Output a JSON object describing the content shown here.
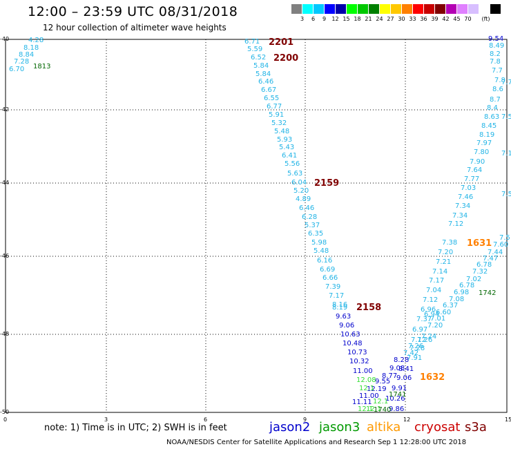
{
  "header": {
    "title": "12:00  –  23:59 UTC 08/31/2018",
    "subtitle": "12 hour collection of altimeter wave heights"
  },
  "colorbar": {
    "colors": [
      "#808080",
      "#00ffff",
      "#00c8ff",
      "#0000ff",
      "#0000aa",
      "#00ff00",
      "#00c800",
      "#008000",
      "#ffff00",
      "#ffc800",
      "#ff8000",
      "#ff0000",
      "#c80000",
      "#800000",
      "#b400b4",
      "#e080ff",
      "#d8bfff",
      "#ffffff",
      "#000000"
    ],
    "labels": [
      "3",
      "6",
      "9",
      "12",
      "15",
      "18",
      "21",
      "24",
      "27",
      "30",
      "33",
      "36",
      "39",
      "42",
      "45",
      "70",
      "(ft)"
    ]
  },
  "axes": {
    "y_ticks": [
      "-40",
      "-42",
      "-44",
      "-46",
      "-48",
      "-50"
    ],
    "x_ticks": [
      "0",
      "3",
      "6",
      "9",
      "12",
      "15"
    ]
  },
  "map_labels": {
    "wave_colors": {
      "c": "#22b4e6",
      "b": "#0000cc",
      "g": "#33dd33",
      "d": "#006600",
      "n": "#22b4e6"
    },
    "points": [
      [
        "4.28",
        41,
        59,
        "c"
      ],
      [
        "8.18",
        34,
        70,
        "c"
      ],
      [
        "8.84",
        27,
        80,
        "c"
      ],
      [
        "7.28",
        20,
        90,
        "c"
      ],
      [
        "6.70",
        13,
        101,
        "c"
      ],
      [
        "6.71",
        354,
        61,
        "c"
      ],
      [
        "5.59",
        358,
        72,
        "c"
      ],
      [
        "6.52",
        363,
        84,
        "c"
      ],
      [
        "5.84",
        367,
        96,
        "c"
      ],
      [
        "5.84",
        370,
        108,
        "c"
      ],
      [
        "6.46",
        374,
        119,
        "c"
      ],
      [
        "6.67",
        378,
        131,
        "c"
      ],
      [
        "6.55",
        382,
        143,
        "c"
      ],
      [
        "6.77",
        386,
        155,
        "c"
      ],
      [
        "5.91",
        389,
        167,
        "c"
      ],
      [
        "5.32",
        393,
        179,
        "c"
      ],
      [
        "5.48",
        397,
        191,
        "c"
      ],
      [
        "5.93",
        401,
        203,
        "c"
      ],
      [
        "5.43",
        404,
        214,
        "c"
      ],
      [
        "6.41",
        408,
        226,
        "c"
      ],
      [
        "5.56",
        412,
        238,
        "c"
      ],
      [
        "5.63",
        416,
        252,
        "c"
      ],
      [
        "6.04",
        422,
        265,
        "c"
      ],
      [
        "5.20",
        425,
        277,
        "c"
      ],
      [
        "4.89",
        428,
        289,
        "c"
      ],
      [
        "6.46",
        433,
        302,
        "c"
      ],
      [
        "6.28",
        437,
        315,
        "c"
      ],
      [
        "5.37",
        441,
        327,
        "c"
      ],
      [
        "6.35",
        446,
        339,
        "c"
      ],
      [
        "5.98",
        451,
        352,
        "c"
      ],
      [
        "5.48",
        454,
        364,
        "c"
      ],
      [
        "6.16",
        459,
        378,
        "c"
      ],
      [
        "6.69",
        463,
        391,
        "c"
      ],
      [
        "6.66",
        467,
        403,
        "c"
      ],
      [
        "7.39",
        471,
        416,
        "c"
      ],
      [
        "7.17",
        476,
        429,
        "c"
      ],
      [
        "8.16",
        481,
        442,
        "c"
      ],
      [
        "8.19",
        481,
        446,
        "c"
      ],
      [
        "9.63",
        486,
        459,
        "b"
      ],
      [
        "9.06",
        491,
        472,
        "b"
      ],
      [
        "10.63",
        493,
        485,
        "b"
      ],
      [
        "10.48",
        496,
        498,
        "b"
      ],
      [
        "10.73",
        503,
        511,
        "b"
      ],
      [
        "10.32",
        506,
        524,
        "b"
      ],
      [
        "11.00",
        511,
        538,
        "b"
      ],
      [
        "9.55",
        543,
        553,
        "b"
      ],
      [
        "12.19",
        531,
        564,
        "b"
      ],
      [
        "11.00",
        520,
        574,
        "b"
      ],
      [
        "11.11",
        510,
        583,
        "b"
      ],
      [
        "9.91",
        567,
        563,
        "b"
      ],
      [
        "10.26",
        558,
        578,
        "b"
      ],
      [
        "9.06",
        574,
        548,
        "b"
      ],
      [
        "9.08",
        564,
        534,
        "b"
      ],
      [
        "8.77",
        553,
        545,
        "b"
      ],
      [
        "8.28",
        570,
        522,
        "b"
      ],
      [
        "8.41",
        577,
        535,
        "b"
      ],
      [
        "9.86",
        563,
        593,
        "b"
      ],
      [
        "12.08",
        516,
        551,
        "g"
      ],
      [
        "12.1",
        520,
        563,
        "g"
      ],
      [
        "12.1",
        518,
        593,
        "g"
      ],
      [
        "12.1",
        530,
        593,
        "g"
      ],
      [
        "12.1",
        540,
        582,
        "g"
      ],
      [
        "1741",
        563,
        572,
        "d"
      ],
      [
        "1740",
        541,
        594,
        "d"
      ],
      [
        "1813",
        48,
        97,
        "d"
      ],
      [
        "1742",
        693,
        425,
        "d"
      ],
      [
        "7.91",
        589,
        519,
        "n"
      ],
      [
        "7.26",
        591,
        502,
        "n"
      ],
      [
        "7.28",
        593,
        505,
        "n"
      ],
      [
        "7.42",
        584,
        512,
        "n"
      ],
      [
        "7.12",
        595,
        493,
        "n"
      ],
      [
        "7.26",
        604,
        493,
        "n"
      ],
      [
        "6.97",
        597,
        478,
        "n"
      ],
      [
        "7.24",
        610,
        488,
        "n"
      ],
      [
        "7.37",
        603,
        463,
        "n"
      ],
      [
        "7.20",
        619,
        472,
        "n"
      ],
      [
        "7.01",
        623,
        462,
        "n"
      ],
      [
        "6.96",
        609,
        449,
        "n"
      ],
      [
        "6.94",
        614,
        456,
        "n"
      ],
      [
        "6.60",
        631,
        453,
        "n"
      ],
      [
        "6.37",
        641,
        443,
        "n"
      ],
      [
        "7.12",
        612,
        435,
        "n"
      ],
      [
        "7.08",
        650,
        434,
        "n"
      ],
      [
        "7.04",
        617,
        421,
        "n"
      ],
      [
        "6.98",
        657,
        424,
        "n"
      ],
      [
        "7.02",
        675,
        405,
        "n"
      ],
      [
        "7.17",
        621,
        407,
        "n"
      ],
      [
        "6.78",
        665,
        414,
        "n"
      ],
      [
        "7.14",
        626,
        394,
        "n"
      ],
      [
        "7.32",
        684,
        394,
        "n"
      ],
      [
        "6.78",
        690,
        384,
        "n"
      ],
      [
        "7.21",
        631,
        380,
        "n"
      ],
      [
        "7.47",
        699,
        375,
        "n"
      ],
      [
        "7.44",
        706,
        366,
        "n"
      ],
      [
        "7.20",
        634,
        366,
        "n"
      ],
      [
        "7.60",
        714,
        355,
        "n"
      ],
      [
        "7.38",
        640,
        352,
        "n"
      ],
      [
        "7.5",
        723,
        345,
        "n"
      ],
      [
        "7.12",
        649,
        325,
        "n"
      ],
      [
        "7.34",
        655,
        313,
        "n"
      ],
      [
        "7.34",
        659,
        299,
        "n"
      ],
      [
        "7.46",
        663,
        286,
        "n"
      ],
      [
        "7.03",
        667,
        273,
        "n"
      ],
      [
        "7.77",
        672,
        260,
        "n"
      ],
      [
        "7.64",
        676,
        247,
        "n"
      ],
      [
        "7.90",
        680,
        235,
        "n"
      ],
      [
        "7.80",
        686,
        221,
        "n"
      ],
      [
        "7.97",
        690,
        208,
        "n"
      ],
      [
        "8.19",
        694,
        196,
        "n"
      ],
      [
        "8.45",
        697,
        183,
        "n"
      ],
      [
        "8.63",
        701,
        170,
        "n"
      ],
      [
        "8.4",
        705,
        157,
        "n"
      ],
      [
        "8.7",
        709,
        145,
        "n"
      ],
      [
        "8.6",
        713,
        130,
        "n"
      ],
      [
        "7.8",
        716,
        117,
        "n"
      ],
      [
        "7.7",
        712,
        103,
        "n"
      ],
      [
        "7.8",
        709,
        90,
        "n"
      ],
      [
        "8.2",
        709,
        79,
        "n"
      ],
      [
        "8.49",
        708,
        67,
        "n"
      ],
      [
        "9.54",
        707,
        57,
        "b"
      ],
      [
        "7.5",
        726,
        282,
        "n"
      ],
      [
        "7.5",
        726,
        170,
        "n"
      ],
      [
        "7.7",
        726,
        120,
        "n"
      ],
      [
        "7.1",
        726,
        223,
        "n"
      ]
    ],
    "time_labels": [
      [
        "2201",
        389,
        61,
        "#800000"
      ],
      [
        "2200",
        396,
        84,
        "#800000"
      ],
      [
        "2159",
        455,
        265,
        "#800000"
      ],
      [
        "2158",
        516,
        445,
        "#800000"
      ],
      [
        "1631",
        676,
        352,
        "#ff8000"
      ],
      [
        "1632",
        608,
        546,
        "#ff8000"
      ]
    ]
  },
  "note": "note:  1) Time is in UTC;  2) SWH is in feet",
  "satellites": [
    {
      "name": "jason2",
      "color": "#0000cc"
    },
    {
      "name": "jason3",
      "color": "#009900"
    },
    {
      "name": "altika",
      "color": "#ff9900"
    },
    {
      "name": "cryosat",
      "color": "#cc0000"
    },
    {
      "name": "s3a",
      "color": "#800000"
    }
  ],
  "footer": "NOAA/NESDIS Center for Satellite Applications and Research    Sep  1 12:28:00 UTC 2018"
}
